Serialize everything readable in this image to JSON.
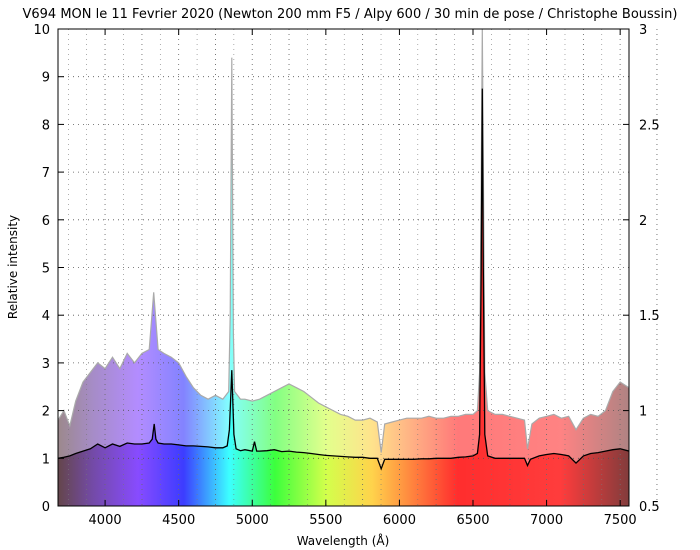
{
  "chart_data": {
    "type": "line",
    "title": "V694 MON le 11 Fevrier 2020 (Newton 200 mm F5 / Alpy 600 / 30 min de pose / Christophe Boussin)",
    "xlabel": "Wavelength (Å)",
    "ylabel": "Relative intensity",
    "xlim": [
      3680,
      7560
    ],
    "ylim": [
      0,
      10
    ],
    "y2lim": [
      0.5,
      3
    ],
    "x_ticks": [
      4000,
      4500,
      5000,
      5500,
      6000,
      6500,
      7000,
      7500
    ],
    "y_ticks": [
      0,
      1,
      2,
      3,
      4,
      5,
      6,
      7,
      8,
      9,
      10
    ],
    "y2_ticks": [
      "0.5",
      "1",
      "1.5",
      "2",
      "2.5",
      "3"
    ],
    "grid": true,
    "background": "visible-spectrum rainbow fill under the curves",
    "series": [
      {
        "color": "#aaaaaa",
        "axis": "right",
        "x": [
          3680,
          3720,
          3760,
          3800,
          3850,
          3900,
          3950,
          4000,
          4050,
          4100,
          4150,
          4200,
          4250,
          4300,
          4330,
          4360,
          4400,
          4450,
          4500,
          4550,
          4600,
          4650,
          4700,
          4750,
          4800,
          4840,
          4850,
          4861,
          4872,
          4880,
          4920,
          4950,
          5000,
          5050,
          5100,
          5150,
          5200,
          5250,
          5300,
          5350,
          5400,
          5450,
          5500,
          5550,
          5600,
          5650,
          5700,
          5750,
          5800,
          5850,
          5876,
          5900,
          5950,
          6000,
          6050,
          6100,
          6150,
          6200,
          6250,
          6300,
          6350,
          6400,
          6450,
          6500,
          6530,
          6545,
          6556,
          6563,
          6570,
          6580,
          6600,
          6650,
          6700,
          6750,
          6800,
          6850,
          6870,
          6900,
          6950,
          7000,
          7050,
          7100,
          7150,
          7200,
          7250,
          7300,
          7350,
          7400,
          7450,
          7500,
          7560
        ],
        "y": [
          0.95,
          1.0,
          0.92,
          1.05,
          1.15,
          1.2,
          1.25,
          1.22,
          1.28,
          1.22,
          1.3,
          1.25,
          1.3,
          1.32,
          1.62,
          1.32,
          1.3,
          1.28,
          1.25,
          1.18,
          1.12,
          1.08,
          1.06,
          1.08,
          1.06,
          1.1,
          1.5,
          2.85,
          1.4,
          1.1,
          1.06,
          1.06,
          1.05,
          1.06,
          1.08,
          1.1,
          1.12,
          1.14,
          1.12,
          1.1,
          1.07,
          1.04,
          1.02,
          1.0,
          0.98,
          0.97,
          0.95,
          0.95,
          0.96,
          0.94,
          0.78,
          0.93,
          0.94,
          0.95,
          0.96,
          0.96,
          0.96,
          0.97,
          0.96,
          0.96,
          0.97,
          0.97,
          0.98,
          0.98,
          1.0,
          1.2,
          2.2,
          3.0,
          2.3,
          1.2,
          1.0,
          0.98,
          0.98,
          0.97,
          0.96,
          0.95,
          0.8,
          0.93,
          0.96,
          0.97,
          0.98,
          0.96,
          0.97,
          0.9,
          0.96,
          0.98,
          0.97,
          1.0,
          1.1,
          1.15,
          1.12
        ]
      },
      {
        "color": "#000000",
        "axis": "left",
        "x": [
          3680,
          3720,
          3760,
          3800,
          3850,
          3900,
          3950,
          4000,
          4050,
          4100,
          4150,
          4200,
          4250,
          4300,
          4320,
          4334,
          4345,
          4360,
          4400,
          4450,
          4500,
          4550,
          4600,
          4650,
          4700,
          4750,
          4800,
          4830,
          4845,
          4861,
          4875,
          4890,
          4920,
          4950,
          5000,
          5015,
          5030,
          5050,
          5100,
          5150,
          5200,
          5250,
          5300,
          5350,
          5400,
          5450,
          5500,
          5550,
          5600,
          5650,
          5700,
          5750,
          5800,
          5850,
          5876,
          5900,
          5950,
          6000,
          6050,
          6100,
          6150,
          6200,
          6250,
          6300,
          6350,
          6400,
          6450,
          6500,
          6530,
          6545,
          6556,
          6563,
          6570,
          6580,
          6600,
          6650,
          6700,
          6750,
          6800,
          6850,
          6870,
          6890,
          6950,
          7000,
          7050,
          7100,
          7150,
          7200,
          7250,
          7300,
          7350,
          7400,
          7450,
          7500,
          7560
        ],
        "y": [
          1.0,
          1.02,
          1.05,
          1.1,
          1.15,
          1.2,
          1.3,
          1.22,
          1.3,
          1.25,
          1.32,
          1.3,
          1.3,
          1.32,
          1.4,
          1.72,
          1.4,
          1.32,
          1.3,
          1.3,
          1.28,
          1.26,
          1.26,
          1.25,
          1.24,
          1.22,
          1.22,
          1.26,
          1.6,
          2.85,
          1.5,
          1.2,
          1.16,
          1.18,
          1.15,
          1.35,
          1.15,
          1.15,
          1.16,
          1.18,
          1.14,
          1.15,
          1.13,
          1.12,
          1.1,
          1.08,
          1.06,
          1.05,
          1.04,
          1.03,
          1.02,
          1.02,
          1.0,
          1.0,
          0.78,
          0.98,
          0.98,
          0.98,
          0.98,
          0.98,
          0.99,
          0.99,
          1.0,
          1.0,
          1.0,
          1.02,
          1.03,
          1.05,
          1.1,
          1.5,
          5.0,
          8.75,
          5.0,
          1.5,
          1.05,
          1.0,
          1.0,
          1.0,
          1.0,
          1.0,
          0.85,
          0.98,
          1.05,
          1.08,
          1.1,
          1.08,
          1.05,
          0.9,
          1.05,
          1.1,
          1.12,
          1.15,
          1.18,
          1.2,
          1.15
        ]
      }
    ]
  }
}
